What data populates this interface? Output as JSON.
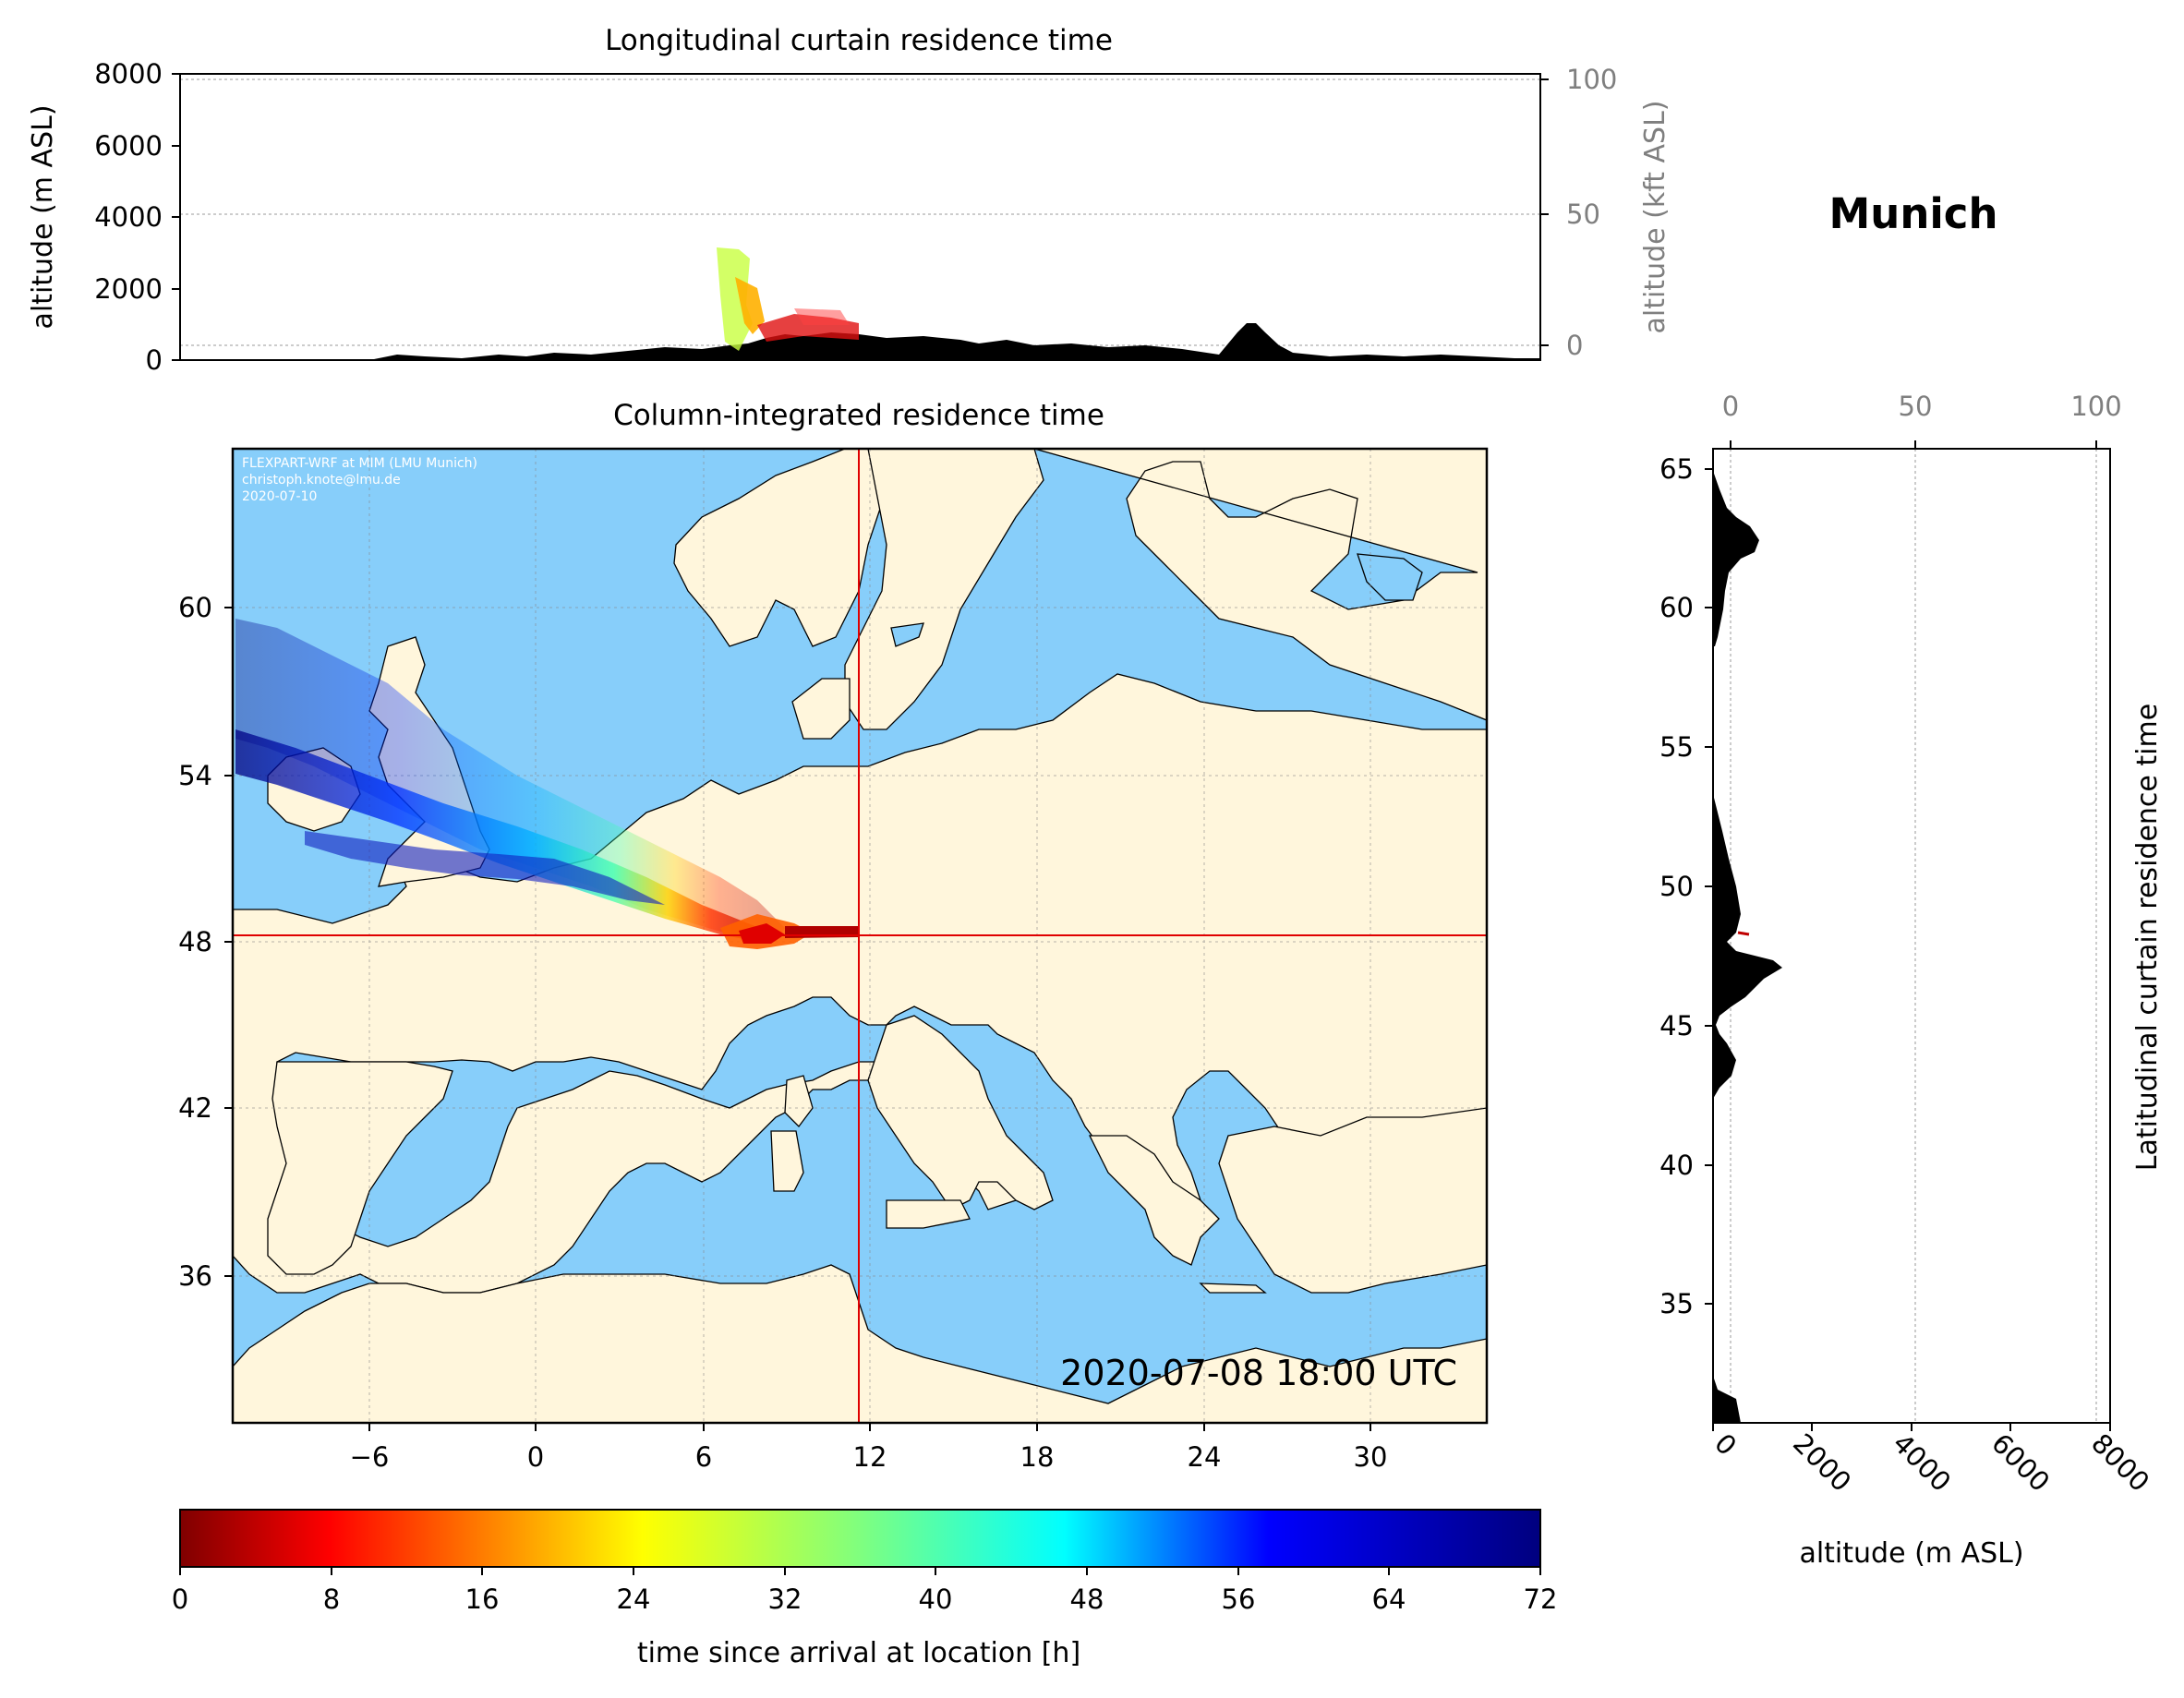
{
  "location_title": "Munich",
  "longitudinal_panel": {
    "title": "Longitudinal curtain residence time",
    "ylabel": "altitude (m ASL)",
    "ylabel_right": "altitude (kft ASL)",
    "yticks": [
      "0",
      "2000",
      "4000",
      "6000",
      "8000"
    ],
    "yticks_right": [
      "0",
      "50",
      "100"
    ]
  },
  "map_panel": {
    "title": "Column-integrated residence time",
    "credit_lines": [
      "FLEXPART-WRF at MIM (LMU Munich)",
      "christoph.knote@lmu.de",
      "2020-07-10"
    ],
    "timestamp": "2020-07-08 18:00 UTC",
    "xticks": [
      "−6",
      "0",
      "6",
      "12",
      "18",
      "24",
      "30"
    ],
    "yticks": [
      "36",
      "42",
      "48",
      "54",
      "60"
    ],
    "colors": {
      "land": "#fff6dc",
      "sea": "#87cefa",
      "crosshair": "#e00000"
    }
  },
  "latitudinal_panel": {
    "ylabel_right": "Latitudinal curtain residence time",
    "xlabel": "altitude (m ASL)",
    "xticks": [
      "0",
      "2000",
      "4000",
      "6000",
      "8000"
    ],
    "xticks_top": [
      "0",
      "50",
      "100"
    ],
    "yticks": [
      "35",
      "40",
      "45",
      "50",
      "55",
      "60",
      "65"
    ]
  },
  "colorbar": {
    "label": "time since arrival at location [h]",
    "ticks": [
      "0",
      "8",
      "16",
      "24",
      "32",
      "40",
      "48",
      "56",
      "64",
      "72"
    ],
    "colormap": "jet_r"
  },
  "chart_data": {
    "type": "map",
    "location": "Munich",
    "arrival_time": "2020-07-08 18:00 UTC",
    "receptor": {
      "lon": 11.6,
      "lat": 48.1
    },
    "map_extent": {
      "lon": [
        -11,
        34
      ],
      "lat": [
        30,
        65
      ]
    },
    "longitudinal_ylim_m": [
      0,
      8000
    ],
    "latitudinal_xlim_m": [
      0,
      8000
    ],
    "latitudinal_ylim_deg": [
      30.5,
      65.8
    ],
    "colorbar_range_h": [
      0,
      72
    ],
    "plume_trajectory": [
      {
        "lon": 11.6,
        "lat": 48.1,
        "hours": 0
      },
      {
        "lon": 10.0,
        "lat": 48.1,
        "hours": 6
      },
      {
        "lon": 8.2,
        "lat": 48.2,
        "hours": 14
      },
      {
        "lon": 7.4,
        "lat": 48.9,
        "hours": 24
      },
      {
        "lon": 5.5,
        "lat": 49.9,
        "hours": 36
      },
      {
        "lon": 3.0,
        "lat": 50.7,
        "hours": 44
      },
      {
        "lon": 1.0,
        "lat": 51.3,
        "hours": 52
      },
      {
        "lon": -3.0,
        "lat": 52.8,
        "hours": 58
      },
      {
        "lon": -7.0,
        "lat": 54.5,
        "hours": 64
      },
      {
        "lon": -11.0,
        "lat": 56.0,
        "hours": 72
      }
    ]
  }
}
